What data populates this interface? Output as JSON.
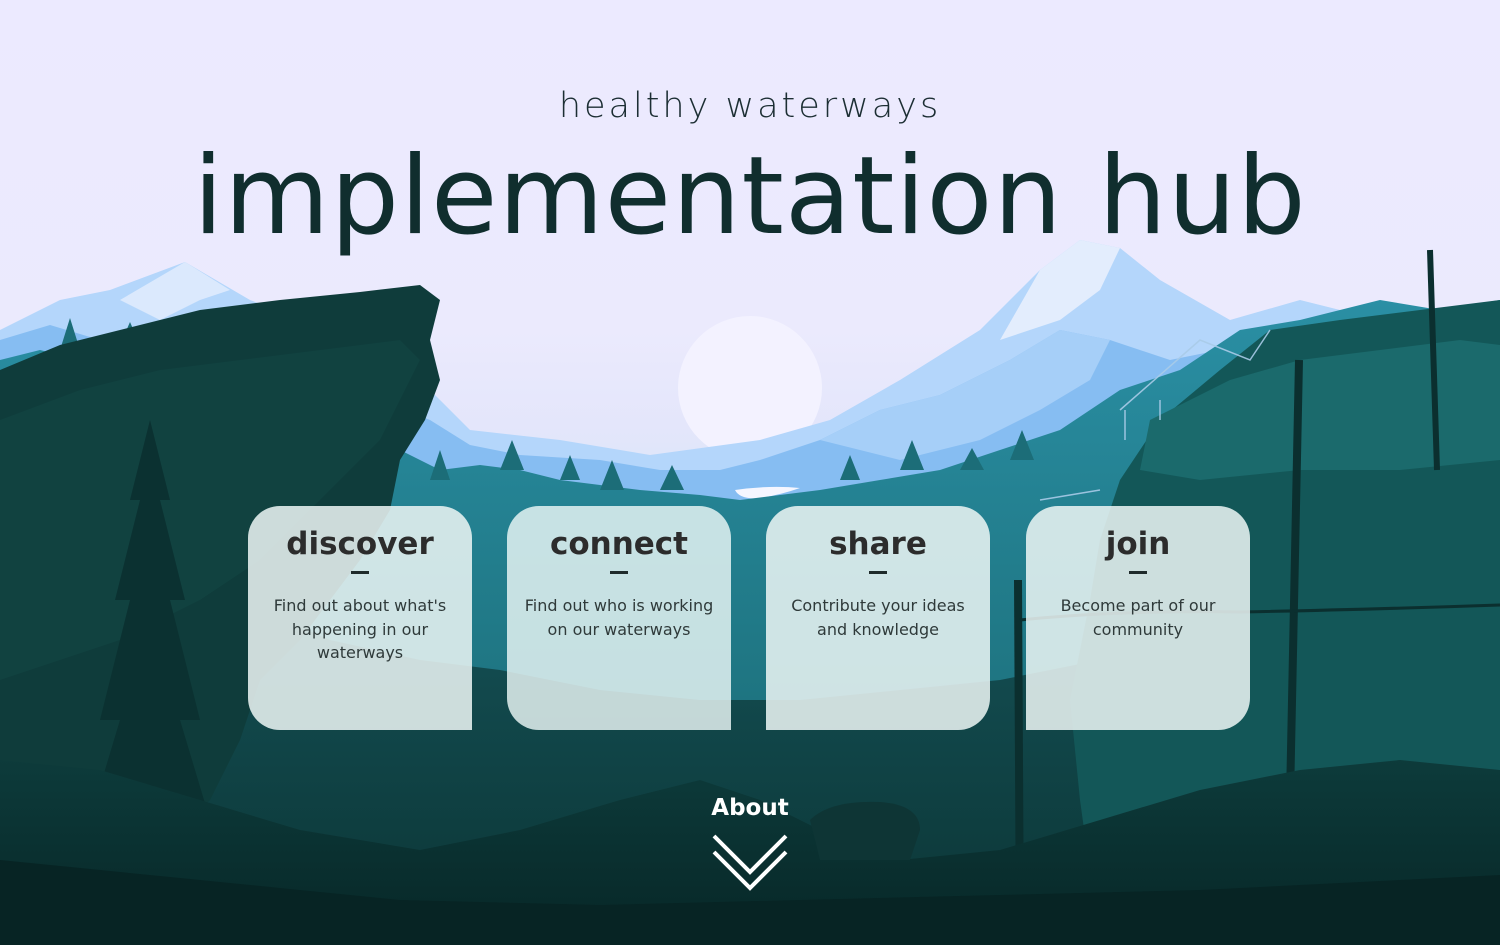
{
  "header": {
    "subtitle": "healthy waterways",
    "title": "implementation hub"
  },
  "cards": [
    {
      "title": "discover",
      "text": "Find out about what's happening in our waterways"
    },
    {
      "title": "connect",
      "text": "Find out who is working on our waterways"
    },
    {
      "title": "share",
      "text": "Contribute your ideas and knowledge"
    },
    {
      "title": "join",
      "text": "Become part of our community"
    }
  ],
  "about": {
    "label": "About",
    "icon": "double-chevron-down-icon"
  },
  "colors": {
    "sky": "#eceaff",
    "title_text": "#102e2e",
    "forest_dark": "#0d3333",
    "forest_mid": "#135a5e",
    "mountain_blue": "#7ab4ee",
    "card_bg": "#ecf6f4"
  }
}
